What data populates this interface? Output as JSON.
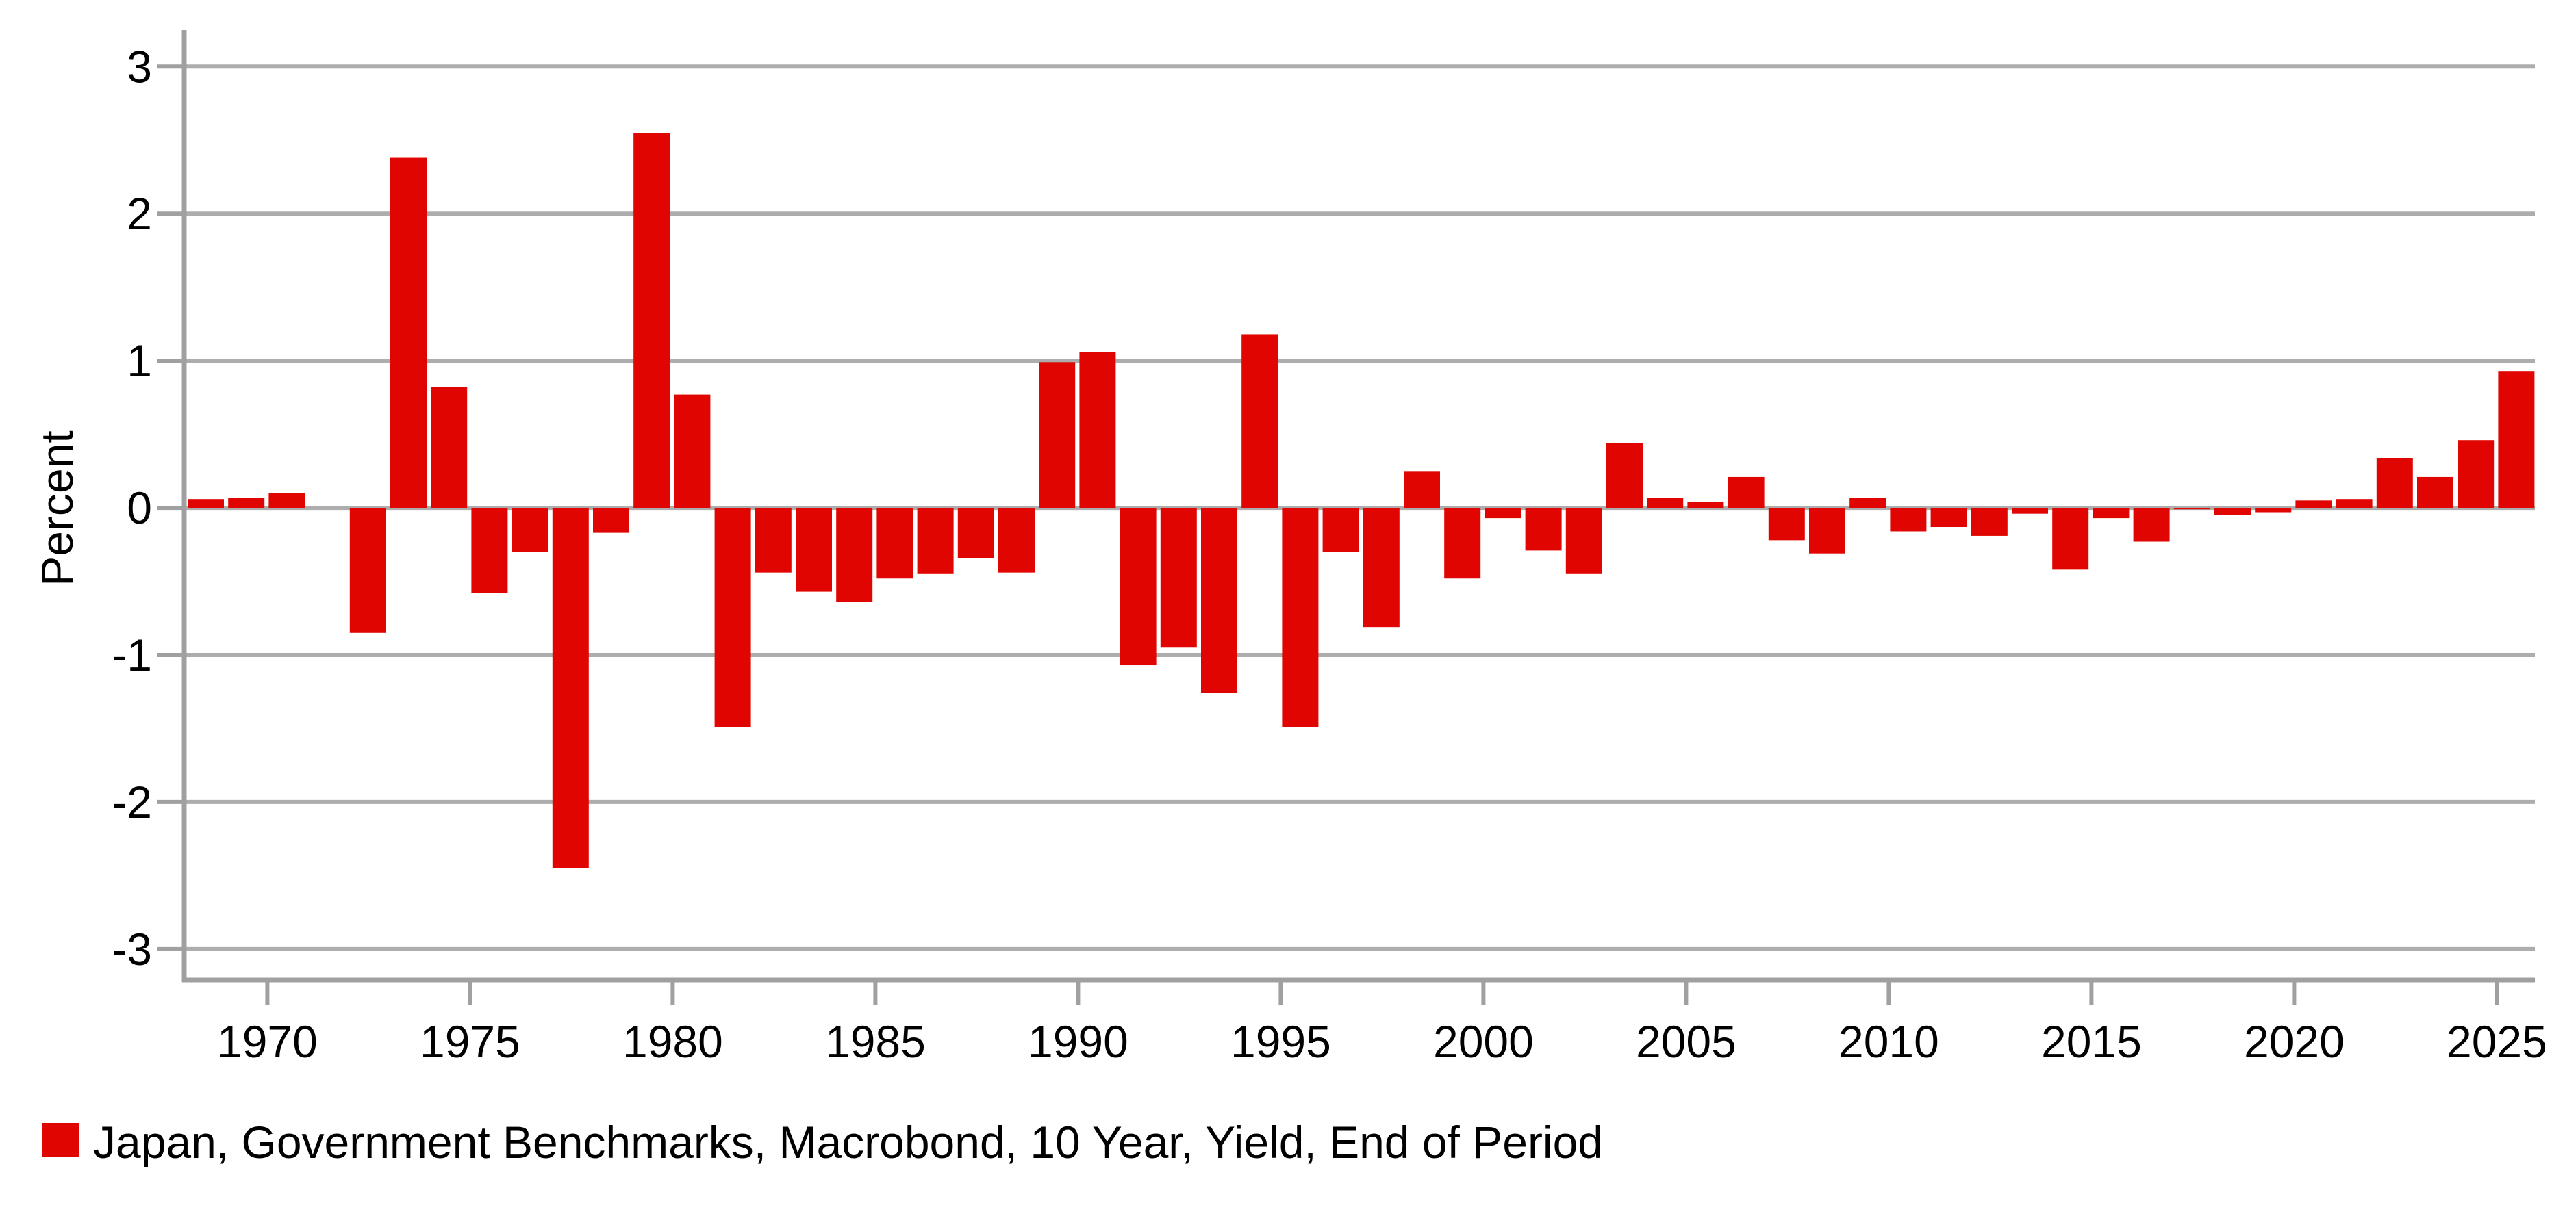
{
  "chart_data": {
    "type": "bar",
    "title": "",
    "ylabel": "Percent",
    "categories": [
      1968,
      1969,
      1970,
      1971,
      1972,
      1973,
      1974,
      1975,
      1976,
      1977,
      1978,
      1979,
      1980,
      1981,
      1982,
      1983,
      1984,
      1985,
      1986,
      1987,
      1988,
      1989,
      1990,
      1991,
      1992,
      1993,
      1994,
      1995,
      1996,
      1997,
      1998,
      1999,
      2000,
      2001,
      2002,
      2003,
      2004,
      2005,
      2006,
      2007,
      2008,
      2009,
      2010,
      2011,
      2012,
      2013,
      2014,
      2015,
      2016,
      2017,
      2018,
      2019,
      2020,
      2021,
      2022,
      2023,
      2024,
      2025
    ],
    "series": [
      {
        "name": "Japan, Government Benchmarks, Macrobond, 10 Year, Yield, End of Period",
        "values": [
          0.06,
          0.07,
          0.1,
          0.0,
          -0.85,
          2.38,
          0.82,
          -0.58,
          -0.3,
          -2.45,
          -0.17,
          2.55,
          0.77,
          -1.49,
          -0.44,
          -0.57,
          -0.64,
          -0.48,
          -0.45,
          -0.34,
          -0.44,
          0.99,
          1.06,
          -1.07,
          -0.95,
          -1.26,
          1.18,
          -1.49,
          -0.3,
          -0.81,
          0.25,
          -0.48,
          -0.07,
          -0.29,
          -0.45,
          0.44,
          0.07,
          0.04,
          0.21,
          -0.22,
          -0.31,
          0.07,
          -0.16,
          -0.13,
          -0.19,
          -0.04,
          -0.42,
          -0.07,
          -0.23,
          -0.01,
          -0.05,
          -0.03,
          0.05,
          0.06,
          0.34,
          0.21,
          0.46,
          0.93
        ]
      }
    ],
    "ylim": [
      -3.21,
      3.22
    ],
    "xlim": [
      1968,
      2026
    ],
    "y_ticks": [
      3,
      2,
      1,
      0,
      -1,
      -2,
      -3
    ],
    "y_tick_labels": [
      "3",
      "2",
      "1",
      "0",
      "-1",
      "-2",
      "-3"
    ],
    "x_tick_years": [
      1970,
      1975,
      1980,
      1985,
      1990,
      1995,
      2000,
      2005,
      2010,
      2015,
      2020,
      2025
    ],
    "grid": true,
    "legend_position": "bottom-left",
    "colors": {
      "bar": "#E00500",
      "grid": "#ADADAD",
      "axis": "#A0A0A0",
      "text": "#000000",
      "background": "#FFFFFF"
    }
  }
}
